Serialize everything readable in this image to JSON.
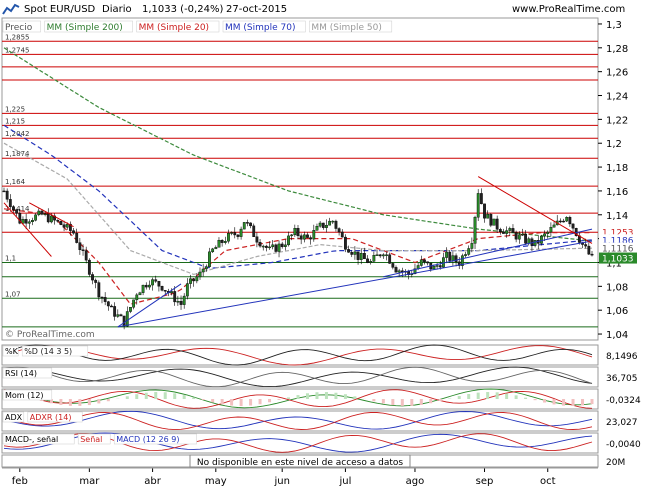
{
  "header": {
    "symbol": "Spot EUR/USD",
    "period": "Diario",
    "last": "1,1033 (-0,24%)",
    "date": "27-oct-2015",
    "site": "www.ProRealTime.com"
  },
  "legend": [
    {
      "label": "Precio",
      "color": "#555555"
    },
    {
      "label": "MM (Simple 200)",
      "color": "#2f7d2f"
    },
    {
      "label": "MM (Simple 20)",
      "color": "#cc2222"
    },
    {
      "label": "MM (Simple 70)",
      "color": "#2233bb"
    },
    {
      "label": "MM (Simple 50)",
      "color": "#999999"
    }
  ],
  "watermark": "© ProRealTime.com",
  "notice": "No disponible en este nivel de acceso a datos",
  "chart_data": {
    "type": "candlestick",
    "x_labels": [
      "feb",
      "mar",
      "abr",
      "may",
      "jun",
      "jul",
      "ago",
      "sep",
      "oct"
    ],
    "y_ticks": [
      "1,3",
      "1,28",
      "1,26",
      "1,24",
      "1,22",
      "1,2",
      "1,18",
      "1,16",
      "1,14",
      "1,12",
      "1,1",
      "1,08",
      "1,06",
      "1,04"
    ],
    "ylim": [
      1.035,
      1.305
    ],
    "left_level_labels": [
      "1,2855",
      "1,2745",
      "1,225",
      "1,215",
      "1,2042",
      "1,1874",
      "1,164",
      "1,1414",
      "1,1",
      "1,07"
    ],
    "right_price_labels": {
      "ma20": "1,1253",
      "ma70": "1,1186",
      "ma50": "1,1116",
      "last": "1,1033"
    },
    "horizontal_levels": [
      1.2855,
      1.2745,
      1.264,
      1.253,
      1.225,
      1.215,
      1.2042,
      1.1874,
      1.164,
      1.1414,
      1.1253,
      1.1,
      1.088,
      1.07,
      1.046
    ],
    "close_anchors": [
      [
        0,
        1.16
      ],
      [
        5,
        1.135
      ],
      [
        12,
        1.14
      ],
      [
        18,
        1.132
      ],
      [
        22,
        1.125
      ],
      [
        26,
        1.1
      ],
      [
        30,
        1.075
      ],
      [
        34,
        1.06
      ],
      [
        38,
        1.05
      ],
      [
        42,
        1.075
      ],
      [
        46,
        1.085
      ],
      [
        50,
        1.08
      ],
      [
        54,
        1.07
      ],
      [
        56,
        1.065
      ],
      [
        58,
        1.08
      ],
      [
        62,
        1.09
      ],
      [
        66,
        1.11
      ],
      [
        70,
        1.12
      ],
      [
        74,
        1.125
      ],
      [
        76,
        1.135
      ],
      [
        80,
        1.12
      ],
      [
        84,
        1.11
      ],
      [
        88,
        1.115
      ],
      [
        92,
        1.125
      ],
      [
        96,
        1.12
      ],
      [
        100,
        1.13
      ],
      [
        104,
        1.135
      ],
      [
        108,
        1.115
      ],
      [
        112,
        1.105
      ],
      [
        116,
        1.1
      ],
      [
        120,
        1.11
      ],
      [
        124,
        1.095
      ],
      [
        128,
        1.09
      ],
      [
        132,
        1.1
      ],
      [
        136,
        1.095
      ],
      [
        140,
        1.105
      ],
      [
        144,
        1.1
      ],
      [
        148,
        1.12
      ],
      [
        150,
        1.16
      ],
      [
        152,
        1.14
      ],
      [
        156,
        1.13
      ],
      [
        160,
        1.125
      ],
      [
        164,
        1.12
      ],
      [
        168,
        1.115
      ],
      [
        172,
        1.125
      ],
      [
        176,
        1.135
      ],
      [
        178,
        1.14
      ],
      [
        180,
        1.13
      ],
      [
        183,
        1.115
      ],
      [
        186,
        1.103
      ]
    ],
    "series": [
      {
        "name": "MM (Simple 200)",
        "anchors": [
          [
            0,
            1.28
          ],
          [
            30,
            1.23
          ],
          [
            60,
            1.19
          ],
          [
            90,
            1.16
          ],
          [
            120,
            1.14
          ],
          [
            150,
            1.128
          ],
          [
            186,
            1.118
          ]
        ]
      },
      {
        "name": "MM (Simple 20)",
        "anchors": [
          [
            0,
            1.145
          ],
          [
            15,
            1.14
          ],
          [
            30,
            1.1
          ],
          [
            40,
            1.065
          ],
          [
            55,
            1.075
          ],
          [
            70,
            1.11
          ],
          [
            90,
            1.12
          ],
          [
            110,
            1.12
          ],
          [
            130,
            1.1
          ],
          [
            150,
            1.12
          ],
          [
            170,
            1.125
          ],
          [
            186,
            1.125
          ]
        ]
      },
      {
        "name": "MM (Simple 70)",
        "anchors": [
          [
            0,
            1.215
          ],
          [
            15,
            1.19
          ],
          [
            30,
            1.16
          ],
          [
            50,
            1.11
          ],
          [
            65,
            1.095
          ],
          [
            85,
            1.1
          ],
          [
            105,
            1.11
          ],
          [
            125,
            1.11
          ],
          [
            150,
            1.11
          ],
          [
            170,
            1.115
          ],
          [
            186,
            1.119
          ]
        ]
      },
      {
        "name": "MM (Simple 50)",
        "anchors": [
          [
            0,
            1.2
          ],
          [
            20,
            1.17
          ],
          [
            40,
            1.11
          ],
          [
            60,
            1.09
          ],
          [
            80,
            1.105
          ],
          [
            100,
            1.115
          ],
          [
            120,
            1.11
          ],
          [
            150,
            1.11
          ],
          [
            186,
            1.112
          ]
        ]
      }
    ],
    "indicators": [
      {
        "label": "%K",
        "label2": "%D (14 3 5)",
        "value": "8,1496"
      },
      {
        "label": "RSI (14)",
        "value": "36,705"
      },
      {
        "label": "Mom (12)",
        "value": "-0,0324"
      },
      {
        "label": "ADX",
        "label2": "ADXR (14)",
        "value": "23,027"
      },
      {
        "label": "MACD-, señal",
        "label2": "Señal",
        "label3": "MACD (12 26 9)",
        "value": "-0,0040"
      }
    ],
    "volume_label": "20M"
  }
}
